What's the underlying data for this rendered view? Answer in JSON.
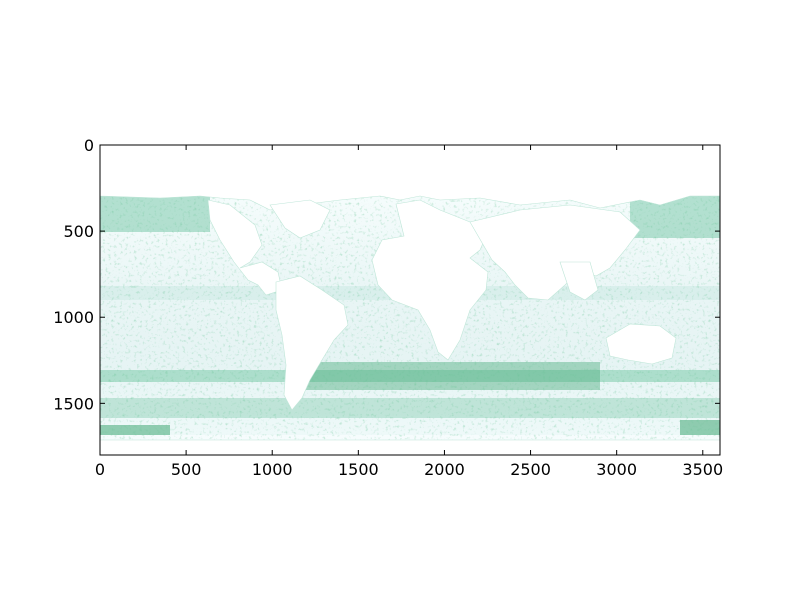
{
  "chart_data": {
    "type": "heatmap",
    "title": "",
    "xlabel": "",
    "ylabel": "",
    "xlim": [
      0,
      3600
    ],
    "ylim": [
      1800,
      0
    ],
    "y_axis_inverted": true,
    "x_ticks": [
      0,
      500,
      1000,
      1500,
      2000,
      2500,
      3000,
      3500
    ],
    "y_ticks": [
      0,
      500,
      1000,
      1500
    ],
    "x_tick_labels": [
      "0",
      "500",
      "1000",
      "1500",
      "2000",
      "2500",
      "3000",
      "3500"
    ],
    "y_tick_labels": [
      "0",
      "500",
      "1000",
      "1500"
    ],
    "grid": false,
    "legend": "none",
    "colormap": "BuGn",
    "colors": {
      "low": "#f7fcfd",
      "mid_low": "#ccece6",
      "mid": "#66c2a4",
      "high": "#238b45",
      "max": "#00441b",
      "masked_land": "#ffffff"
    },
    "description_units": "image pixel indices (column, row) of a global ocean field; land masked"
  }
}
